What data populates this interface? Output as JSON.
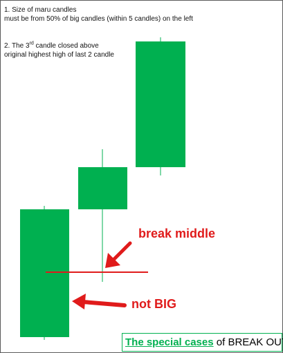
{
  "notes": {
    "note1_line1": "1. Size of maru candles",
    "note1_line2": "must be from 50% of big candles (within 5 candles) on the left",
    "note2_pre": "2. The 3",
    "note2_sup": "rd",
    "note2_post": " candle closed above",
    "note2_line2": "original highest high of last 2 candle"
  },
  "annotations": {
    "break_middle": "break middle",
    "not_big": "not BIG"
  },
  "caption": {
    "highlight": "The special cases",
    "rest": " of BREAK OUT"
  },
  "colors": {
    "candle": "#00b050",
    "annotation": "#e01b1b"
  }
}
